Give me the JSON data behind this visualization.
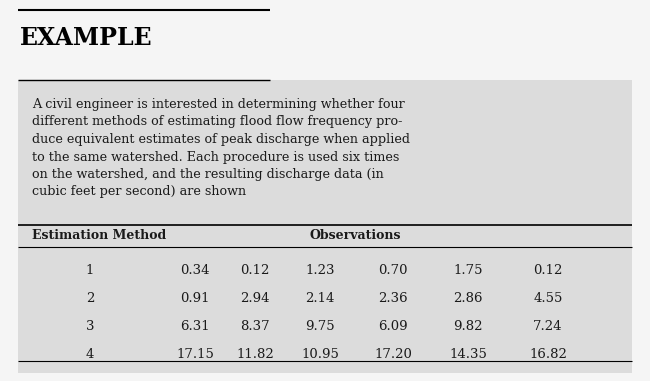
{
  "title": "EXAMPLE",
  "paragraph_lines": [
    "A civil engineer is interested in determining whether four",
    "different methods of estimating flood flow frequency pro-",
    "duce equivalent estimates of peak discharge when applied",
    "to the same watershed. Each procedure is used six times",
    "on the watershed, and the resulting discharge data (in",
    "cubic feet per second) are shown"
  ],
  "col_header_left": "Estimation Method",
  "col_header_right": "Observations",
  "methods": [
    "1",
    "2",
    "3",
    "4"
  ],
  "data": [
    [
      "0.34",
      "0.12",
      "1.23",
      "0.70",
      "1.75",
      "0.12"
    ],
    [
      "0.91",
      "2.94",
      "2.14",
      "2.36",
      "2.86",
      "4.55"
    ],
    [
      "6.31",
      "8.37",
      "9.75",
      "6.09",
      "9.82",
      "7.24"
    ],
    [
      "17.15",
      "11.82",
      "10.95",
      "17.20",
      "14.35",
      "16.82"
    ]
  ],
  "bg_color": "#dcdcdc",
  "white_bg": "#f5f5f5",
  "text_color": "#1a1a1a",
  "title_color": "#000000",
  "fig_width": 6.5,
  "fig_height": 3.81,
  "dpi": 100
}
